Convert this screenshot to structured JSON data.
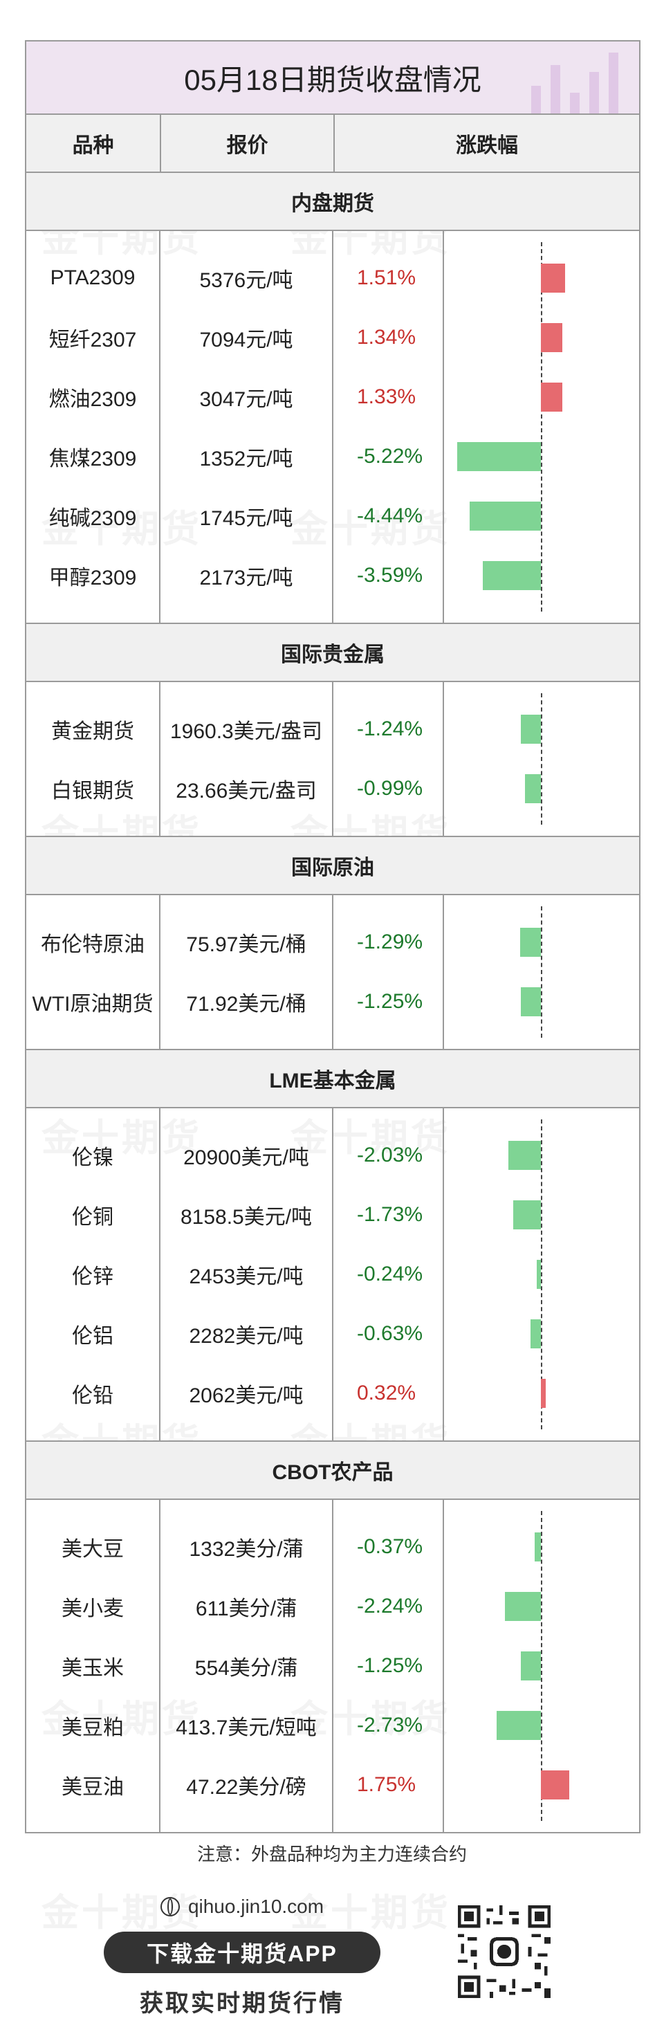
{
  "title": "05月18日期货收盘情况",
  "header": {
    "variety": "品种",
    "price": "报价",
    "change": "涨跌幅"
  },
  "watermark_text": "金十期货",
  "sections": [
    {
      "name": "内盘期货",
      "rows": [
        {
          "name": "PTA2309",
          "price": "5376元/吨",
          "change": "1.51%",
          "value": 1.51
        },
        {
          "name": "短纤2307",
          "price": "7094元/吨",
          "change": "1.34%",
          "value": 1.34
        },
        {
          "name": "燃油2309",
          "price": "3047元/吨",
          "change": "1.33%",
          "value": 1.33
        },
        {
          "name": "焦煤2309",
          "price": "1352元/吨",
          "change": "-5.22%",
          "value": -5.22
        },
        {
          "name": "纯碱2309",
          "price": "1745元/吨",
          "change": "-4.44%",
          "value": -4.44
        },
        {
          "name": "甲醇2309",
          "price": "2173元/吨",
          "change": "-3.59%",
          "value": -3.59
        }
      ]
    },
    {
      "name": "国际贵金属",
      "rows": [
        {
          "name": "黄金期货",
          "price": "1960.3美元/盎司",
          "change": "-1.24%",
          "value": -1.24
        },
        {
          "name": "白银期货",
          "price": "23.66美元/盎司",
          "change": "-0.99%",
          "value": -0.99
        }
      ]
    },
    {
      "name": "国际原油",
      "rows": [
        {
          "name": "布伦特原油",
          "price": "75.97美元/桶",
          "change": "-1.29%",
          "value": -1.29
        },
        {
          "name": "WTI原油期货",
          "price": "71.92美元/桶",
          "change": "-1.25%",
          "value": -1.25
        }
      ]
    },
    {
      "name": "LME基本金属",
      "rows": [
        {
          "name": "伦镍",
          "price": "20900美元/吨",
          "change": "-2.03%",
          "value": -2.03
        },
        {
          "name": "伦铜",
          "price": "8158.5美元/吨",
          "change": "-1.73%",
          "value": -1.73
        },
        {
          "name": "伦锌",
          "price": "2453美元/吨",
          "change": "-0.24%",
          "value": -0.24
        },
        {
          "name": "伦铝",
          "price": "2282美元/吨",
          "change": "-0.63%",
          "value": -0.63
        },
        {
          "name": "伦铅",
          "price": "2062美元/吨",
          "change": "0.32%",
          "value": 0.32
        }
      ]
    },
    {
      "name": "CBOT农产品",
      "rows": [
        {
          "name": "美大豆",
          "price": "1332美分/蒲",
          "change": "-0.37%",
          "value": -0.37
        },
        {
          "name": "美小麦",
          "price": "611美分/蒲",
          "change": "-2.24%",
          "value": -2.24
        },
        {
          "name": "美玉米",
          "price": "554美分/蒲",
          "change": "-1.25%",
          "value": -1.25
        },
        {
          "name": "美豆粕",
          "price": "413.7美元/短吨",
          "change": "-2.73%",
          "value": -2.73
        },
        {
          "name": "美豆油",
          "price": "47.22美分/磅",
          "change": "1.75%",
          "value": 1.75
        }
      ]
    }
  ],
  "colors": {
    "up": "#c8322f",
    "down": "#1d7a2c",
    "bar_up": "#e66a6f",
    "bar_down": "#7fd494"
  },
  "note": "注意：外盘品种均为主力连续合约",
  "footer": {
    "site": "qihuo.jin10.com",
    "download_button": "下载金十期货APP",
    "subtitle": "获取实时期货行情"
  }
}
